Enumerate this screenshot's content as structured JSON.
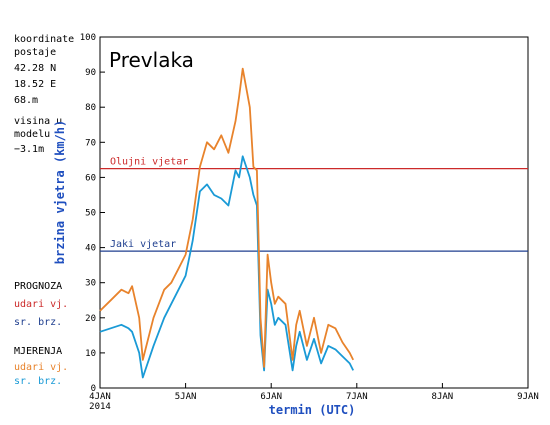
{
  "colors": {
    "forecast_gust": "#e8832c",
    "forecast_mean": "#1a9ad6",
    "threshold_storm": "#cc2a2a",
    "threshold_strong": "#1f3f8f",
    "axis_label": "#1f4fbf",
    "forecast_label_gust": "#cc2a2a",
    "forecast_label_mean": "#1f3f8f"
  },
  "station": {
    "coords_title": "koordinate",
    "coords_title2": "postaje",
    "lat": "42.28 N",
    "lon": "18.52 E",
    "elev": "68.m",
    "model_height_title": "visina u",
    "model_height_title2": "modelu",
    "model_height_value": "−3.1m"
  },
  "legend": {
    "forecast_title": "PROGNOZA",
    "forecast_gust": "udari vj.",
    "forecast_mean": "sr. brz.",
    "measure_title": "MJERENJA",
    "measure_gust": "udari vj.",
    "measure_mean": "sr. brz."
  },
  "chart_data": {
    "type": "line",
    "title": "Prevlaka",
    "xlabel": "termin (UTC)",
    "ylabel": "brzina vjetra (km/h)",
    "ylim": [
      0,
      100
    ],
    "yticks": [
      0,
      10,
      20,
      30,
      40,
      50,
      60,
      70,
      80,
      90,
      100
    ],
    "xlim": [
      "2014-01-04 00:00",
      "2014-01-09 00:00"
    ],
    "xticks": [
      "4JAN\n2014",
      "5JAN",
      "6JAN",
      "7JAN",
      "8JAN",
      "9JAN"
    ],
    "grid": "none",
    "thresholds": [
      {
        "label": "Olujni vjetar",
        "value": 62.5
      },
      {
        "label": "Jaki vjetar",
        "value": 39
      }
    ],
    "series": [
      {
        "name": "udari vj.",
        "x": [
          "2014-01-04 00:00",
          "2014-01-04 03:00",
          "2014-01-04 06:00",
          "2014-01-04 08:00",
          "2014-01-04 09:00",
          "2014-01-04 11:00",
          "2014-01-04 12:00",
          "2014-01-04 15:00",
          "2014-01-04 18:00",
          "2014-01-04 20:00",
          "2014-01-04 22:00",
          "2014-01-05 00:00",
          "2014-01-05 02:00",
          "2014-01-05 04:00",
          "2014-01-05 06:00",
          "2014-01-05 08:00",
          "2014-01-05 10:00",
          "2014-01-05 12:00",
          "2014-01-05 14:00",
          "2014-01-05 15:00",
          "2014-01-05 16:00",
          "2014-01-05 18:00",
          "2014-01-05 19:00",
          "2014-01-05 20:00",
          "2014-01-05 21:00",
          "2014-01-05 22:00",
          "2014-01-05 23:00",
          "2014-01-06 00:00",
          "2014-01-06 01:00",
          "2014-01-06 02:00",
          "2014-01-06 04:00",
          "2014-01-06 06:00",
          "2014-01-06 07:00",
          "2014-01-06 08:00",
          "2014-01-06 10:00",
          "2014-01-06 12:00",
          "2014-01-06 14:00",
          "2014-01-06 16:00",
          "2014-01-06 18:00",
          "2014-01-06 20:00",
          "2014-01-06 22:00",
          "2014-01-06 23:00"
        ],
        "values": [
          22,
          25,
          28,
          27,
          29,
          20,
          8,
          20,
          28,
          30,
          34,
          38,
          48,
          63,
          70,
          68,
          72,
          67,
          76,
          83,
          91,
          80,
          63,
          62,
          20,
          6,
          38,
          30,
          24,
          26,
          24,
          8,
          18,
          22,
          12,
          20,
          10,
          18,
          17,
          13,
          10,
          8
        ]
      },
      {
        "name": "sr. brz.",
        "x": [
          "2014-01-04 00:00",
          "2014-01-04 03:00",
          "2014-01-04 06:00",
          "2014-01-04 08:00",
          "2014-01-04 09:00",
          "2014-01-04 11:00",
          "2014-01-04 12:00",
          "2014-01-04 15:00",
          "2014-01-04 18:00",
          "2014-01-04 20:00",
          "2014-01-04 22:00",
          "2014-01-05 00:00",
          "2014-01-05 02:00",
          "2014-01-05 04:00",
          "2014-01-05 06:00",
          "2014-01-05 08:00",
          "2014-01-05 10:00",
          "2014-01-05 12:00",
          "2014-01-05 14:00",
          "2014-01-05 15:00",
          "2014-01-05 16:00",
          "2014-01-05 18:00",
          "2014-01-05 19:00",
          "2014-01-05 20:00",
          "2014-01-05 21:00",
          "2014-01-05 22:00",
          "2014-01-05 23:00",
          "2014-01-06 00:00",
          "2014-01-06 01:00",
          "2014-01-06 02:00",
          "2014-01-06 04:00",
          "2014-01-06 06:00",
          "2014-01-06 07:00",
          "2014-01-06 08:00",
          "2014-01-06 10:00",
          "2014-01-06 12:00",
          "2014-01-06 14:00",
          "2014-01-06 16:00",
          "2014-01-06 18:00",
          "2014-01-06 20:00",
          "2014-01-06 22:00",
          "2014-01-06 23:00"
        ],
        "values": [
          16,
          17,
          18,
          17,
          16,
          10,
          3,
          12,
          20,
          24,
          28,
          32,
          42,
          56,
          58,
          55,
          54,
          52,
          62,
          60,
          66,
          60,
          55,
          52,
          15,
          5,
          28,
          24,
          18,
          20,
          18,
          5,
          12,
          16,
          8,
          14,
          7,
          12,
          11,
          9,
          7,
          5
        ]
      }
    ]
  }
}
